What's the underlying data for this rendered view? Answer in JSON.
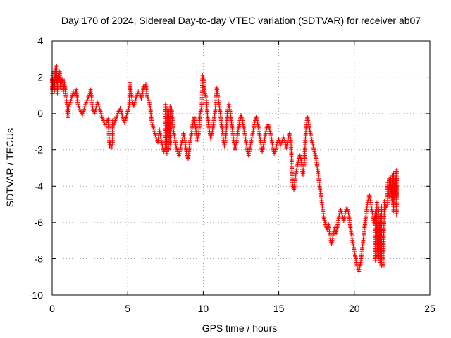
{
  "chart_data": {
    "type": "scatter",
    "title": "Day 170 of 2024, Sidereal Day-to-day VTEC variation (SDTVAR) for receiver ab07",
    "xlabel": "GPS time / hours",
    "ylabel": "SDTVAR / TECUs",
    "xlim": [
      0,
      25
    ],
    "ylim": [
      -10,
      4
    ],
    "xticks": [
      0,
      5,
      10,
      15,
      20,
      25
    ],
    "yticks": [
      -10,
      -8,
      -6,
      -4,
      -2,
      0,
      2,
      4
    ],
    "grid": true,
    "marker": "+",
    "series": [
      {
        "name": "SDTVAR",
        "color": "#ff0000",
        "points": [
          [
            0.0,
            1.1
          ],
          [
            0.0,
            1.6
          ],
          [
            0.0,
            2.1
          ],
          [
            0.05,
            1.4
          ],
          [
            0.1,
            2.0
          ],
          [
            0.1,
            2.3
          ],
          [
            0.15,
            1.8
          ],
          [
            0.15,
            1.2
          ],
          [
            0.2,
            2.5
          ],
          [
            0.2,
            1.9
          ],
          [
            0.25,
            2.2
          ],
          [
            0.25,
            1.3
          ],
          [
            0.3,
            2.6
          ],
          [
            0.3,
            1.7
          ],
          [
            0.35,
            2.0
          ],
          [
            0.35,
            1.1
          ],
          [
            0.4,
            2.4
          ],
          [
            0.4,
            1.5
          ],
          [
            0.45,
            2.1
          ],
          [
            0.5,
            1.8
          ],
          [
            0.5,
            2.3
          ],
          [
            0.55,
            1.4
          ],
          [
            0.6,
            2.0
          ],
          [
            0.65,
            1.6
          ],
          [
            0.7,
            1.9
          ],
          [
            0.75,
            1.2
          ],
          [
            0.8,
            1.7
          ],
          [
            0.85,
            1.4
          ],
          [
            0.9,
            1.0
          ],
          [
            0.95,
            0.7
          ],
          [
            1.0,
            0.3
          ],
          [
            1.0,
            0.0
          ],
          [
            1.05,
            -0.2
          ],
          [
            1.1,
            0.4
          ],
          [
            1.2,
            0.6
          ],
          [
            1.3,
            0.9
          ],
          [
            1.4,
            1.2
          ],
          [
            1.5,
            1.0
          ],
          [
            1.6,
            1.3
          ],
          [
            1.65,
            0.8
          ],
          [
            1.7,
            0.5
          ],
          [
            1.8,
            0.3
          ],
          [
            1.9,
            0.1
          ],
          [
            2.0,
            -0.1
          ],
          [
            2.1,
            0.2
          ],
          [
            2.2,
            0.5
          ],
          [
            2.3,
            0.7
          ],
          [
            2.4,
            0.9
          ],
          [
            2.5,
            1.1
          ],
          [
            2.55,
            1.3
          ],
          [
            2.6,
            0.9
          ],
          [
            2.65,
            0.5
          ],
          [
            2.7,
            0.2
          ],
          [
            2.8,
            0.0
          ],
          [
            2.9,
            0.3
          ],
          [
            3.0,
            0.6
          ],
          [
            3.1,
            0.4
          ],
          [
            3.2,
            0.1
          ],
          [
            3.3,
            -0.2
          ],
          [
            3.4,
            -0.4
          ],
          [
            3.5,
            -0.6
          ],
          [
            3.6,
            -0.5
          ],
          [
            3.7,
            -0.3
          ],
          [
            3.8,
            -1.8
          ],
          [
            3.85,
            -1.6
          ],
          [
            3.9,
            -1.9
          ],
          [
            4.0,
            -1.7
          ],
          [
            4.0,
            -0.4
          ],
          [
            4.1,
            -0.6
          ],
          [
            4.2,
            -0.3
          ],
          [
            4.3,
            -0.1
          ],
          [
            4.4,
            0.1
          ],
          [
            4.5,
            0.3
          ],
          [
            4.6,
            0.0
          ],
          [
            4.7,
            -0.3
          ],
          [
            4.8,
            -0.5
          ],
          [
            4.9,
            -0.2
          ],
          [
            5.0,
            0.1
          ],
          [
            5.1,
            0.4
          ],
          [
            5.15,
            1.7
          ],
          [
            5.2,
            1.3
          ],
          [
            5.25,
            1.0
          ],
          [
            5.3,
            0.7
          ],
          [
            5.4,
            0.4
          ],
          [
            5.5,
            0.7
          ],
          [
            5.6,
            1.0
          ],
          [
            5.7,
            1.2
          ],
          [
            5.8,
            1.1
          ],
          [
            5.9,
            0.8
          ],
          [
            6.0,
            1.2
          ],
          [
            6.05,
            1.5
          ],
          [
            6.1,
            1.4
          ],
          [
            6.2,
            1.6
          ],
          [
            6.25,
            1.2
          ],
          [
            6.3,
            0.9
          ],
          [
            6.4,
            0.7
          ],
          [
            6.5,
            0.3
          ],
          [
            6.55,
            -0.2
          ],
          [
            6.6,
            -0.5
          ],
          [
            6.7,
            -0.8
          ],
          [
            6.8,
            -1.1
          ],
          [
            6.9,
            -1.4
          ],
          [
            7.0,
            -1.6
          ],
          [
            7.05,
            -1.2
          ],
          [
            7.1,
            -0.9
          ],
          [
            7.2,
            -1.4
          ],
          [
            7.3,
            -1.8
          ],
          [
            7.4,
            -2.1
          ],
          [
            7.5,
            -1.9
          ],
          [
            7.6,
            -2.2
          ],
          [
            7.7,
            -2.0
          ],
          [
            7.8,
            -1.7
          ],
          [
            7.5,
            0.5
          ],
          [
            7.6,
            0.3
          ],
          [
            7.7,
            0.2
          ],
          [
            7.8,
            0.4
          ],
          [
            7.9,
            0.3
          ],
          [
            8.0,
            -0.8
          ],
          [
            8.1,
            -1.3
          ],
          [
            8.2,
            -1.8
          ],
          [
            8.3,
            -2.1
          ],
          [
            8.4,
            -2.3
          ],
          [
            8.5,
            -1.9
          ],
          [
            8.6,
            -1.5
          ],
          [
            8.7,
            -1.1
          ],
          [
            8.8,
            -1.6
          ],
          [
            8.9,
            -2.2
          ],
          [
            9.0,
            -2.5
          ],
          [
            9.05,
            -2.1
          ],
          [
            9.1,
            -1.7
          ],
          [
            9.2,
            -1.2
          ],
          [
            9.3,
            -0.6
          ],
          [
            9.4,
            -0.2
          ],
          [
            9.5,
            -0.8
          ],
          [
            9.6,
            -1.5
          ],
          [
            9.7,
            -1.1
          ],
          [
            9.75,
            -0.5
          ],
          [
            9.8,
            0.0
          ],
          [
            9.9,
            0.4
          ],
          [
            9.95,
            2.1
          ],
          [
            10.0,
            2.0
          ],
          [
            10.05,
            1.6
          ],
          [
            10.1,
            1.2
          ],
          [
            10.2,
            0.8
          ],
          [
            10.25,
            0.3
          ],
          [
            10.3,
            -0.3
          ],
          [
            10.4,
            -0.9
          ],
          [
            10.5,
            -1.4
          ],
          [
            10.6,
            -1.0
          ],
          [
            10.7,
            -0.4
          ],
          [
            10.8,
            0.2
          ],
          [
            10.85,
            0.9
          ],
          [
            10.9,
            1.4
          ],
          [
            11.0,
            0.8
          ],
          [
            11.1,
            0.2
          ],
          [
            11.2,
            -0.5
          ],
          [
            11.3,
            -1.2
          ],
          [
            11.4,
            -1.8
          ],
          [
            11.5,
            -1.3
          ],
          [
            11.55,
            -0.6
          ],
          [
            11.6,
            0.1
          ],
          [
            11.7,
            0.5
          ],
          [
            11.8,
            0.0
          ],
          [
            11.9,
            -0.7
          ],
          [
            12.0,
            -1.4
          ],
          [
            12.1,
            -2.0
          ],
          [
            12.2,
            -1.6
          ],
          [
            12.3,
            -1.0
          ],
          [
            12.4,
            -0.5
          ],
          [
            12.5,
            -0.1
          ],
          [
            12.6,
            -0.4
          ],
          [
            12.7,
            -0.9
          ],
          [
            12.8,
            -1.4
          ],
          [
            12.9,
            -1.9
          ],
          [
            13.0,
            -2.3
          ],
          [
            13.1,
            -1.9
          ],
          [
            13.2,
            -1.4
          ],
          [
            13.3,
            -1.0
          ],
          [
            13.4,
            -0.5
          ],
          [
            13.5,
            -0.2
          ],
          [
            13.6,
            -0.5
          ],
          [
            13.7,
            -1.0
          ],
          [
            13.8,
            -1.6
          ],
          [
            13.9,
            -2.1
          ],
          [
            14.0,
            -1.7
          ],
          [
            14.1,
            -1.2
          ],
          [
            14.2,
            -0.8
          ],
          [
            14.3,
            -0.6
          ],
          [
            14.4,
            -0.9
          ],
          [
            14.5,
            -1.3
          ],
          [
            14.6,
            -1.8
          ],
          [
            14.7,
            -2.2
          ],
          [
            14.8,
            -2.0
          ],
          [
            14.9,
            -1.6
          ],
          [
            15.0,
            -1.4
          ],
          [
            15.1,
            -1.8
          ],
          [
            15.2,
            -1.6
          ],
          [
            15.3,
            -1.3
          ],
          [
            15.4,
            -1.5
          ],
          [
            15.5,
            -1.9
          ],
          [
            15.6,
            -1.5
          ],
          [
            15.7,
            -1.1
          ],
          [
            15.8,
            -1.4
          ],
          [
            15.9,
            -3.9
          ],
          [
            16.0,
            -4.2
          ],
          [
            16.1,
            -3.5
          ],
          [
            16.2,
            -3.0
          ],
          [
            16.3,
            -2.6
          ],
          [
            16.4,
            -2.3
          ],
          [
            16.5,
            -2.7
          ],
          [
            16.6,
            -3.4
          ],
          [
            16.7,
            -2.6
          ],
          [
            16.75,
            -1.6
          ],
          [
            16.8,
            -0.8
          ],
          [
            16.9,
            -0.2
          ],
          [
            17.0,
            -0.7
          ],
          [
            17.1,
            -1.1
          ],
          [
            17.2,
            -1.5
          ],
          [
            17.3,
            -1.9
          ],
          [
            17.4,
            -2.2
          ],
          [
            17.5,
            -2.7
          ],
          [
            17.6,
            -3.3
          ],
          [
            17.7,
            -4.0
          ],
          [
            17.8,
            -4.6
          ],
          [
            17.9,
            -5.2
          ],
          [
            18.0,
            -5.8
          ],
          [
            18.1,
            -6.1
          ],
          [
            18.2,
            -6.4
          ],
          [
            18.3,
            -6.1
          ],
          [
            18.4,
            -6.8
          ],
          [
            18.5,
            -7.2
          ],
          [
            18.6,
            -6.7
          ],
          [
            18.7,
            -6.3
          ],
          [
            18.8,
            -6.6
          ],
          [
            18.9,
            -6.1
          ],
          [
            19.0,
            -5.6
          ],
          [
            19.1,
            -5.3
          ],
          [
            19.2,
            -5.6
          ],
          [
            19.3,
            -5.9
          ],
          [
            19.4,
            -5.5
          ],
          [
            19.5,
            -5.2
          ],
          [
            19.6,
            -5.4
          ],
          [
            19.7,
            -6.0
          ],
          [
            19.8,
            -6.6
          ],
          [
            19.9,
            -7.1
          ],
          [
            20.0,
            -7.6
          ],
          [
            20.1,
            -8.0
          ],
          [
            20.2,
            -8.5
          ],
          [
            20.3,
            -8.7
          ],
          [
            20.4,
            -8.3
          ],
          [
            20.5,
            -7.6
          ],
          [
            20.6,
            -6.9
          ],
          [
            20.7,
            -6.1
          ],
          [
            20.8,
            -5.4
          ],
          [
            20.9,
            -4.8
          ],
          [
            21.0,
            -4.5
          ],
          [
            21.1,
            -5.0
          ],
          [
            21.2,
            -5.5
          ],
          [
            21.3,
            -6.0
          ],
          [
            21.4,
            -5.4
          ],
          [
            21.5,
            -4.9
          ],
          [
            21.6,
            -5.2
          ],
          [
            21.7,
            -5.6
          ],
          [
            21.8,
            -5.1
          ],
          [
            21.4,
            -8.1
          ],
          [
            21.5,
            -7.9
          ],
          [
            21.6,
            -8.0
          ],
          [
            21.7,
            -8.2
          ],
          [
            21.8,
            -8.4
          ],
          [
            21.9,
            -8.5
          ],
          [
            22.0,
            -4.8
          ],
          [
            22.1,
            -5.2
          ],
          [
            22.2,
            -5.0
          ],
          [
            22.3,
            -4.6
          ],
          [
            22.4,
            -4.3
          ],
          [
            22.5,
            -4.8
          ],
          [
            22.6,
            -5.4
          ],
          [
            22.7,
            -5.2
          ],
          [
            22.8,
            -4.6
          ],
          [
            22.2,
            -3.8
          ],
          [
            22.3,
            -3.6
          ],
          [
            22.4,
            -3.5
          ],
          [
            22.5,
            -3.4
          ],
          [
            22.6,
            -3.3
          ],
          [
            22.7,
            -3.2
          ],
          [
            22.8,
            -3.1
          ],
          [
            22.8,
            -5.6
          ]
        ]
      }
    ]
  }
}
